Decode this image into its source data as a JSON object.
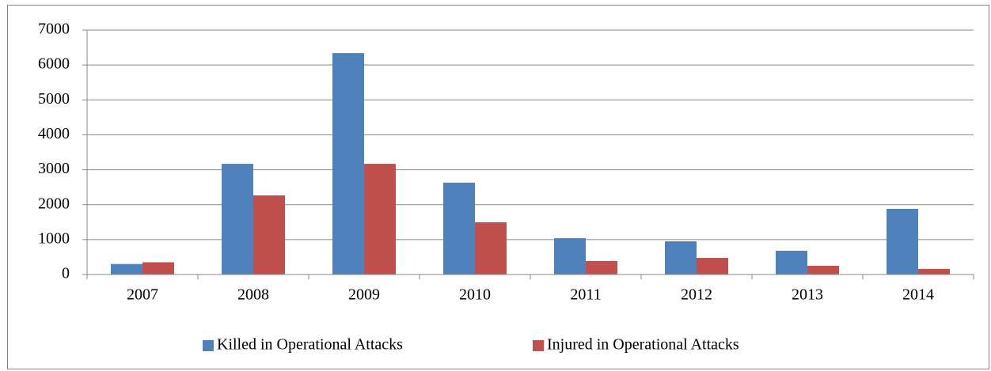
{
  "chart_data": {
    "type": "bar",
    "categories": [
      "2007",
      "2008",
      "2009",
      "2010",
      "2011",
      "2012",
      "2013",
      "2014"
    ],
    "series": [
      {
        "name": "Killed in Operational Attacks",
        "color": "#4f81bd",
        "values": [
          300,
          3170,
          6340,
          2630,
          1040,
          950,
          680,
          1880
        ]
      },
      {
        "name": "Injured in Operational Attacks",
        "color": "#c0504d",
        "values": [
          350,
          2265,
          3170,
          1495,
          385,
          475,
          250,
          160
        ]
      }
    ],
    "ylim": [
      0,
      7000
    ],
    "yticks": [
      0,
      1000,
      2000,
      3000,
      4000,
      5000,
      6000,
      7000
    ],
    "grid": true,
    "legend": "bottom"
  }
}
